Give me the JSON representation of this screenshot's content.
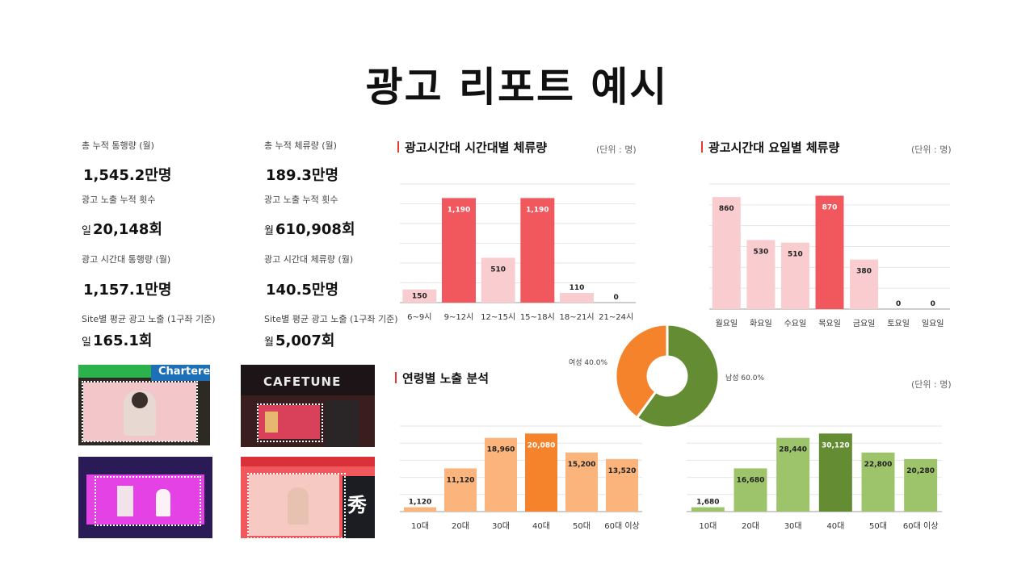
{
  "page_title": "광고 리포트 예시",
  "stats": [
    {
      "label": "총 누적 통행량 (월)",
      "prefix": "",
      "value": "1,545.2만명"
    },
    {
      "label": "총 누적 체류량 (월)",
      "prefix": "",
      "value": "189.3만명"
    },
    {
      "label": "광고 노출 누적 횟수",
      "prefix": "일",
      "value": "20,148회"
    },
    {
      "label": "광고 노출 누적 횟수",
      "prefix": "월",
      "value": "610,908회"
    },
    {
      "label": "광고 시간대 통행량 (월)",
      "prefix": "",
      "value": "1,157.1만명"
    },
    {
      "label": "광고 시간대 체류량 (월)",
      "prefix": "",
      "value": "140.5만명"
    },
    {
      "label": "Site별 평균 광고 노출 (1구좌 기준)",
      "prefix": "일",
      "value": "165.1회"
    },
    {
      "label": "Site별 평균 광고 노출 (1구좌 기준)",
      "prefix": "월",
      "value": "5,007회"
    }
  ],
  "photos": [
    {
      "sign_text": "Chartered"
    },
    {
      "sign_text": "CAFETUNE"
    },
    {
      "sign_text": ""
    },
    {
      "sign_text": "秀"
    }
  ],
  "colors": {
    "red": "#f0585e",
    "pink": "#f9cdd0",
    "orange_dark": "#f5832b",
    "orange_light": "#fbb57c",
    "green_dark": "#638c33",
    "green_light": "#9dc46a",
    "accent_bar": "#e53935"
  },
  "chart_data": [
    {
      "type": "bar",
      "title": "광고시간대 시간대별 체류량",
      "unit": "(단위 : 명)",
      "categories": [
        "6~9시",
        "9~12시",
        "12~15시",
        "15~18시",
        "18~21시",
        "21~24시"
      ],
      "values": [
        150,
        1190,
        510,
        1190,
        110,
        0
      ],
      "value_labels": [
        "150",
        "1,190",
        "510",
        "1,190",
        "110",
        "0"
      ],
      "highlight": [
        false,
        true,
        false,
        true,
        false,
        false
      ],
      "ylim": [
        0,
        1350
      ],
      "grid": true
    },
    {
      "type": "bar",
      "title": "광고시간대 요일별 체류량",
      "unit": "(단위 : 명)",
      "categories": [
        "월요일",
        "화요일",
        "수요일",
        "목요일",
        "금요일",
        "토요일",
        "일요일"
      ],
      "values": [
        860,
        530,
        510,
        870,
        380,
        0,
        0
      ],
      "value_labels": [
        "860",
        "530",
        "510",
        "870",
        "380",
        "0",
        "0"
      ],
      "highlight": [
        false,
        false,
        false,
        true,
        false,
        false,
        false
      ],
      "ylim": [
        0,
        960
      ],
      "grid": true
    },
    {
      "type": "pie",
      "title": "연령별 노출 분석",
      "slices": [
        {
          "label": "여성 40.0%",
          "value": 40.0,
          "color": "#f5832b"
        },
        {
          "label": "남성 60.0%",
          "value": 60.0,
          "color": "#638c33"
        }
      ]
    },
    {
      "type": "bar",
      "categories": [
        "10대",
        "20대",
        "30대",
        "40대",
        "50대",
        "60대 이상"
      ],
      "values": [
        1120,
        11120,
        18960,
        20080,
        15200,
        13520
      ],
      "value_labels": [
        "1,120",
        "11,120",
        "18,960",
        "20,080",
        "15,200",
        "13,520"
      ],
      "highlight": [
        false,
        false,
        false,
        true,
        false,
        false
      ],
      "ylim": [
        0,
        22000
      ],
      "grid": true
    },
    {
      "type": "bar",
      "unit": "(단위 : 명)",
      "categories": [
        "10대",
        "20대",
        "30대",
        "40대",
        "50대",
        "60대 이상"
      ],
      "values": [
        1680,
        16680,
        28440,
        30120,
        22800,
        20280
      ],
      "value_labels": [
        "1,680",
        "16,680",
        "28,440",
        "30,120",
        "22,800",
        "20,280"
      ],
      "highlight": [
        false,
        false,
        false,
        true,
        false,
        false
      ],
      "ylim": [
        0,
        33000
      ],
      "grid": true
    }
  ]
}
